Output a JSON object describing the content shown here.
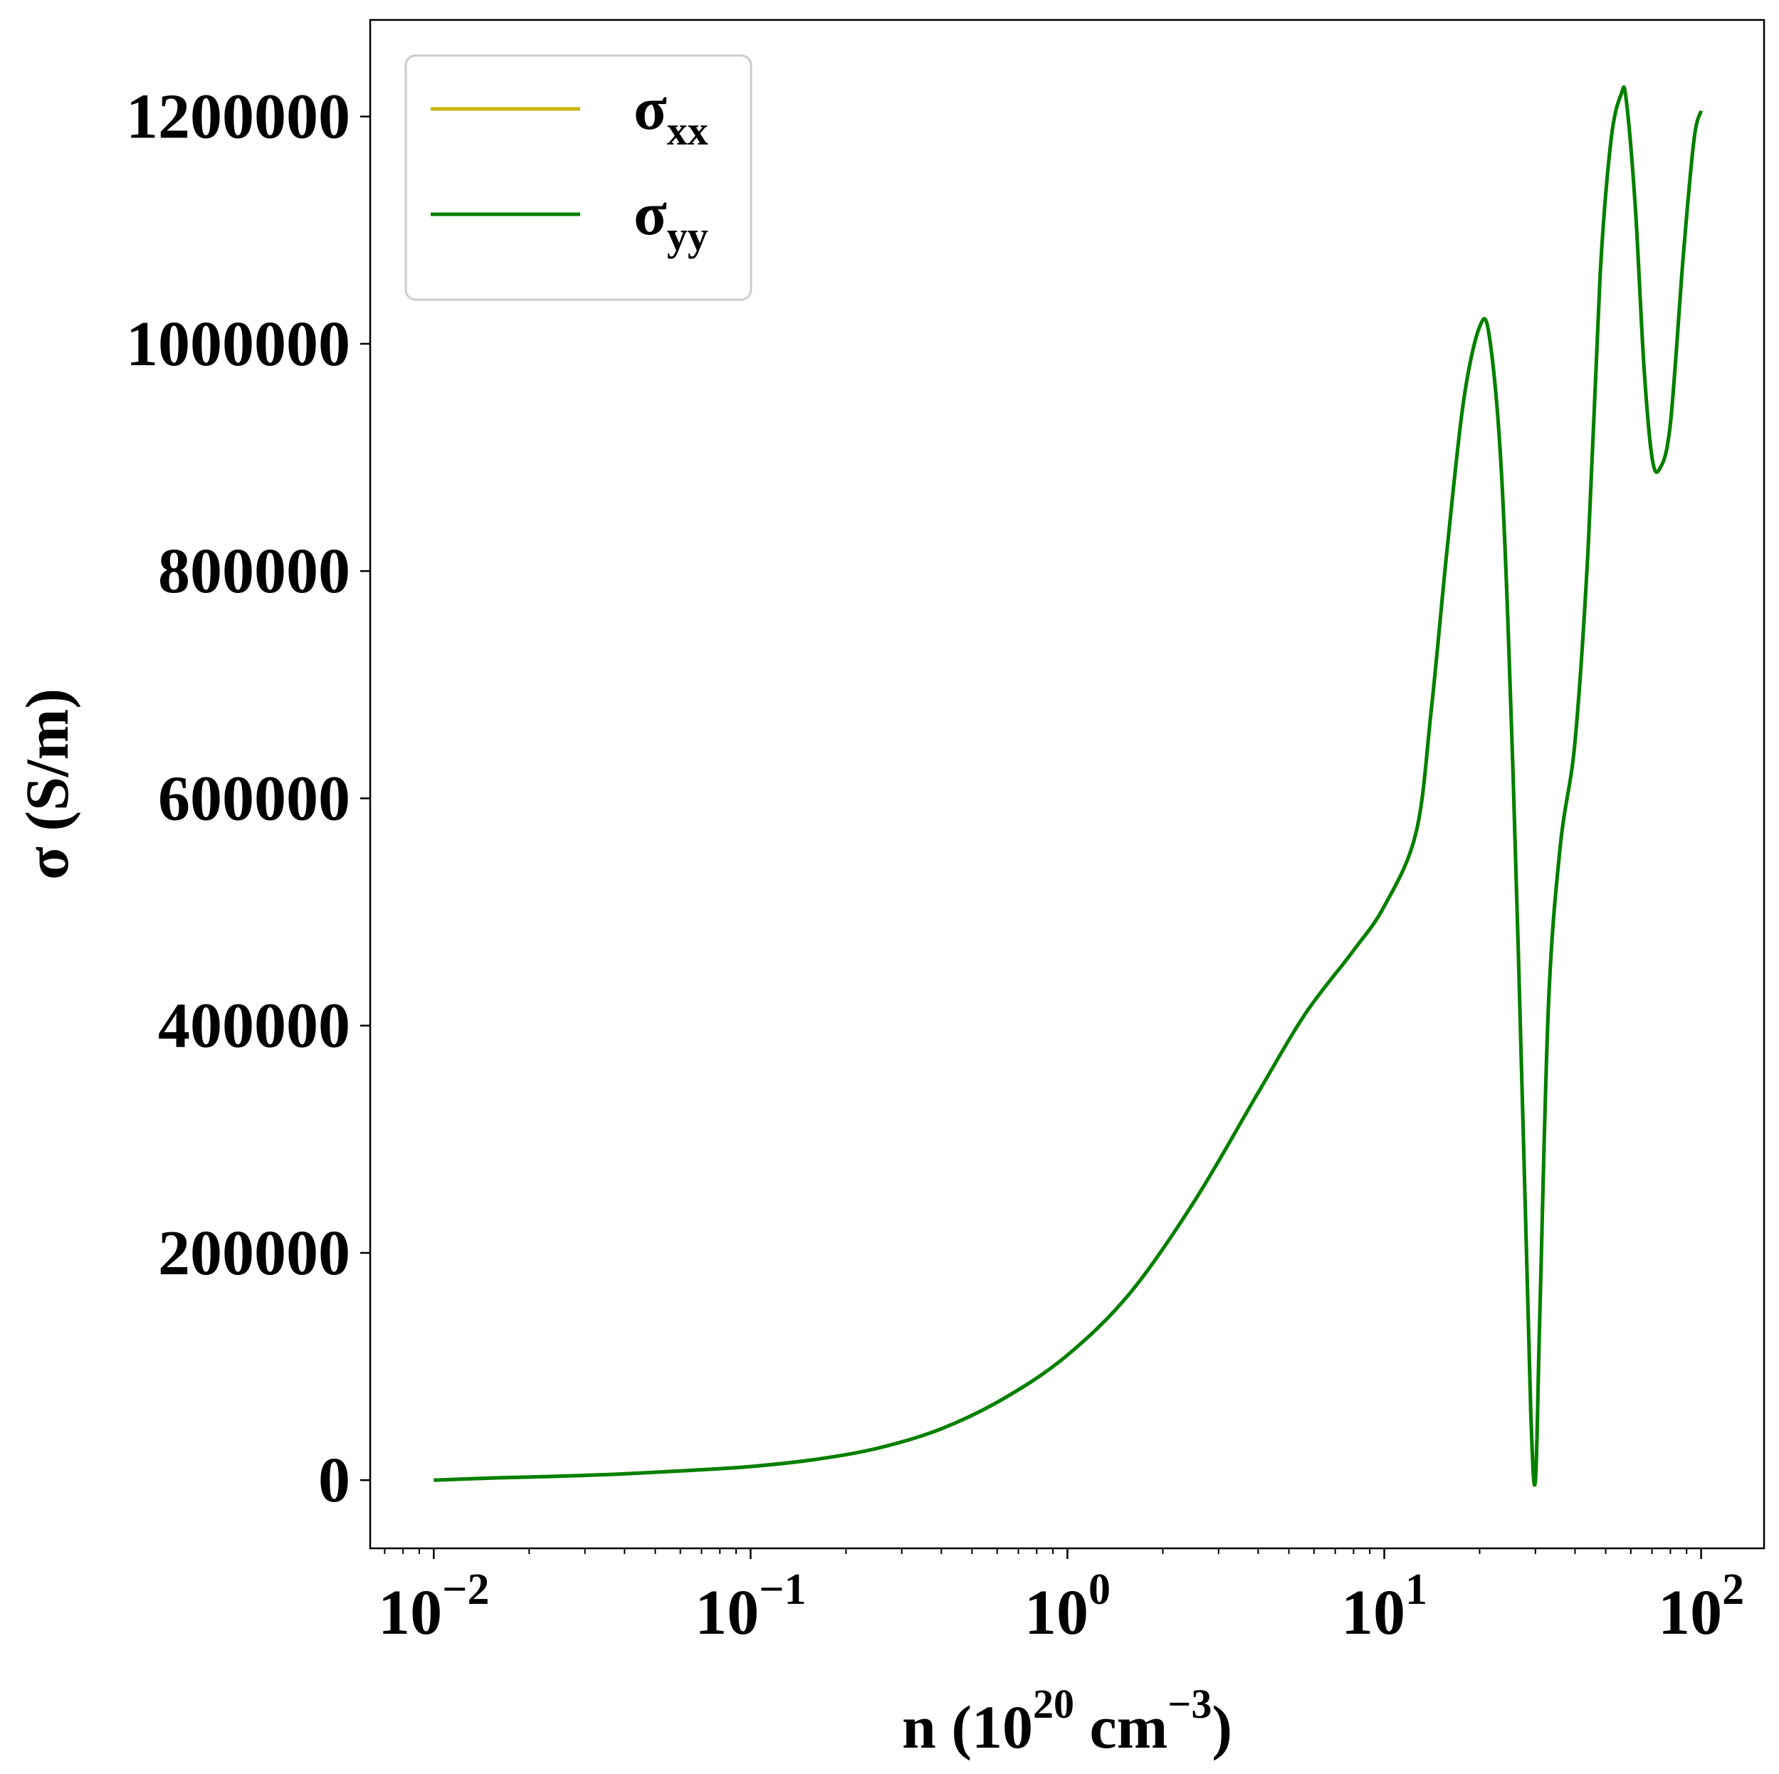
{
  "chart_data": {
    "type": "line",
    "xscale": "log",
    "xlabel": {
      "base": "n (10",
      "sup1": "20",
      "mid": " cm",
      "sup2": "−3",
      "end": ")"
    },
    "ylabel": "σ (S/m)",
    "xlim": [
      0.0063,
      158
    ],
    "ylim": [
      -60000,
      1285000
    ],
    "yticks": [
      0,
      200000,
      400000,
      600000,
      800000,
      1000000,
      1200000
    ],
    "ytick_labels": [
      "0",
      "200000",
      "400000",
      "600000",
      "800000",
      "1000000",
      "1200000"
    ],
    "xticks": [
      {
        "value": 0.01,
        "base": "10",
        "exp": "−2"
      },
      {
        "value": 0.1,
        "base": "10",
        "exp": "−1"
      },
      {
        "value": 1,
        "base": "10",
        "exp": "0"
      },
      {
        "value": 10,
        "base": "10",
        "exp": "1"
      },
      {
        "value": 100,
        "base": "10",
        "exp": "2"
      }
    ],
    "grid": false,
    "legend_position": "top-left",
    "series": [
      {
        "name": "σ",
        "subscript": "xx",
        "color": "#c8b400",
        "x": [
          0.01,
          0.0158,
          0.0251,
          0.0398,
          0.0631,
          0.1,
          0.158,
          0.251,
          0.398,
          0.631,
          1,
          1.58,
          2.51,
          3.98,
          5.62,
          7.94,
          10,
          12.6,
          14.1,
          15.8,
          17.8,
          20,
          21.5,
          23.5,
          25.5,
          27.5,
          29,
          30,
          31,
          33,
          36,
          40,
          44,
          48,
          52,
          56,
          58,
          62,
          66,
          70,
          74,
          80,
          88,
          95,
          100
        ],
        "values": [
          0,
          2000,
          3500,
          5500,
          8500,
          12000,
          18000,
          28000,
          45000,
          72000,
          110000,
          165000,
          245000,
          340000,
          410000,
          465000,
          505000,
          570000,
          680000,
          820000,
          950000,
          1015000,
          1005000,
          880000,
          620000,
          300000,
          60000,
          0,
          150000,
          420000,
          560000,
          650000,
          820000,
          1060000,
          1180000,
          1220000,
          1215000,
          1120000,
          980000,
          900000,
          890000,
          930000,
          1080000,
          1180000,
          1205000
        ]
      },
      {
        "name": "σ",
        "subscript": "yy",
        "color": "#008000",
        "x": [
          0.01,
          0.0158,
          0.0251,
          0.0398,
          0.0631,
          0.1,
          0.158,
          0.251,
          0.398,
          0.631,
          1,
          1.58,
          2.51,
          3.98,
          5.62,
          7.94,
          10,
          12.6,
          14.1,
          15.8,
          17.8,
          20,
          21.5,
          23.5,
          25.5,
          27.5,
          29,
          30,
          31,
          33,
          36,
          40,
          44,
          48,
          52,
          56,
          58,
          62,
          66,
          70,
          74,
          80,
          88,
          95,
          100
        ],
        "values": [
          0,
          2000,
          3500,
          5500,
          8500,
          12000,
          18000,
          28000,
          45000,
          72000,
          110000,
          165000,
          245000,
          340000,
          410000,
          465000,
          505000,
          570000,
          680000,
          820000,
          950000,
          1015000,
          1005000,
          880000,
          620000,
          300000,
          60000,
          0,
          150000,
          420000,
          560000,
          650000,
          820000,
          1060000,
          1180000,
          1220000,
          1215000,
          1120000,
          980000,
          900000,
          890000,
          930000,
          1080000,
          1180000,
          1205000
        ]
      }
    ]
  }
}
